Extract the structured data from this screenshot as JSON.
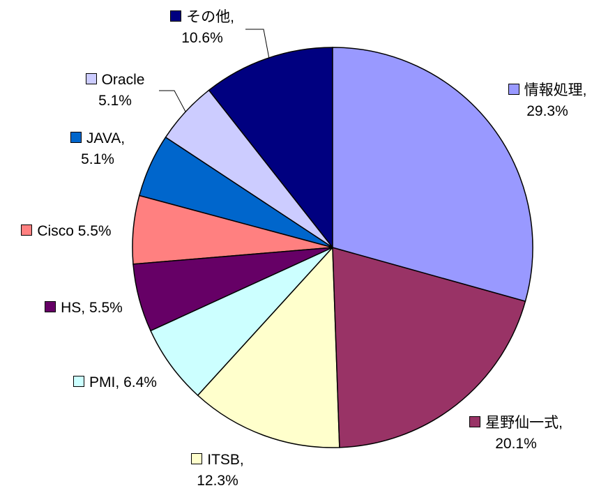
{
  "chart_data": {
    "type": "pie",
    "categories": [
      "情報処理,",
      "星野仙一式,",
      "ITSB,",
      "PMI,",
      "HS,",
      "Cisco",
      "JAVA,",
      "Oracle",
      "その他,"
    ],
    "values": [
      29.3,
      20.1,
      12.3,
      6.4,
      5.5,
      5.5,
      5.1,
      5.1,
      10.6
    ],
    "value_labels": [
      "29.3%",
      "20.1%",
      "12.3%",
      "6.4%",
      "5.5%",
      "5.5%",
      "5.1%",
      "5.1%",
      "10.6%"
    ],
    "colors": [
      "#9999ff",
      "#993366",
      "#ffffcc",
      "#ccffff",
      "#660066",
      "#ff8080",
      "#0066cc",
      "#ccccff",
      "#000080"
    ]
  }
}
